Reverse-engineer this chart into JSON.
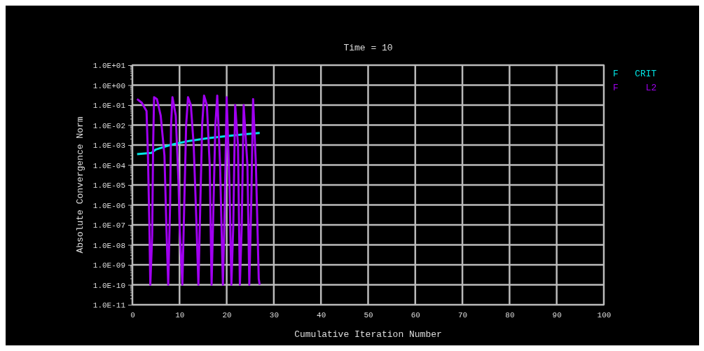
{
  "chart_data": {
    "type": "line",
    "title": "Time = 10",
    "xlabel": "Cumulative Iteration Number",
    "ylabel": "Absolute Convergence Norm",
    "log": true,
    "grid": true,
    "legend": "top right",
    "marker": "none",
    "line_style": "solid",
    "xlim": [
      0,
      100
    ],
    "xticks": [
      0,
      10,
      20,
      30,
      40,
      50,
      60,
      70,
      80,
      90,
      100
    ],
    "ylim": [
      1e-11,
      10
    ],
    "yticks": [
      {
        "value": 10,
        "label": "1.0E+01"
      },
      {
        "value": 1,
        "label": "1.0E+00"
      },
      {
        "value": 0.1,
        "label": "1.0E-01"
      },
      {
        "value": 0.01,
        "label": "1.0E-02"
      },
      {
        "value": 0.001,
        "label": "1.0E-03"
      },
      {
        "value": 0.0001,
        "label": "1.0E-04"
      },
      {
        "value": 1e-05,
        "label": "1.0E-05"
      },
      {
        "value": 1e-06,
        "label": "1.0E-06"
      },
      {
        "value": 1e-07,
        "label": "1.0E-07"
      },
      {
        "value": 1e-08,
        "label": "1.0E-08"
      },
      {
        "value": 1e-09,
        "label": "1.0E-09"
      },
      {
        "value": 1e-10,
        "label": "1.0E-10"
      },
      {
        "value": 1e-11,
        "label": "1.0E-11"
      }
    ],
    "series": [
      {
        "name": "F   CRIT",
        "color": "#00e5e5",
        "x": [
          1,
          4,
          5,
          8,
          12,
          16,
          20,
          24,
          27
        ],
        "values": [
          0.00035,
          0.0004,
          0.0006,
          0.001,
          0.0016,
          0.0022,
          0.0028,
          0.0035,
          0.004
        ]
      },
      {
        "name": "F     L2",
        "color": "#a000f0",
        "x": [
          1,
          2,
          3,
          3.3,
          3.6,
          3.8,
          4.2,
          4.4,
          4.6,
          5.2,
          6,
          6.8,
          7.2,
          7.6,
          8,
          8.2,
          8.5,
          9.2,
          9.8,
          10,
          10.6,
          11,
          11.4,
          11.8,
          12.4,
          13,
          13.6,
          14,
          14.4,
          14.8,
          15.2,
          15.8,
          16.4,
          16.8,
          17.2,
          17.6,
          18,
          18.6,
          19.2,
          19.6,
          20,
          20.6,
          21,
          21.4,
          21.8,
          22.4,
          22.8,
          23.2,
          23.6,
          24.4,
          24.8,
          25.2,
          25.6,
          26.2,
          26.8,
          27
        ],
        "values": [
          0.2,
          0.13,
          0.05,
          0.0003,
          1e-07,
          1e-10,
          3e-08,
          0.001,
          0.25,
          0.2,
          0.03,
          0.0003,
          1e-07,
          1e-10,
          1e-06,
          0.01,
          0.25,
          0.03,
          1e-05,
          1e-07,
          1e-10,
          1e-06,
          0.01,
          0.25,
          0.1,
          0.001,
          1e-07,
          1e-10,
          1e-06,
          0.01,
          0.3,
          0.1,
          0.0001,
          1e-10,
          1e-06,
          0.01,
          0.3,
          0.0001,
          1e-10,
          1e-06,
          0.25,
          1e-05,
          1e-10,
          1e-07,
          0.1,
          0.001,
          1e-10,
          1e-07,
          0.1,
          0.0001,
          1e-10,
          1e-06,
          0.2,
          0.0001,
          2e-10,
          1e-10
        ]
      }
    ]
  }
}
